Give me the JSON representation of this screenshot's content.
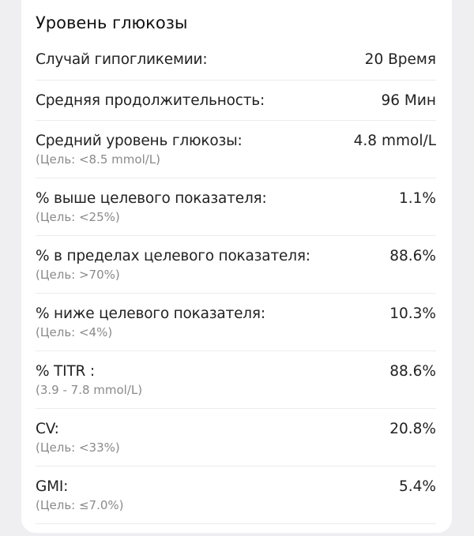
{
  "title": "Уровень глюкозы",
  "rows": [
    {
      "label": "Случай гипогликемии:",
      "value": "20 Время"
    },
    {
      "label": "Средняя продолжительность:",
      "value": "96 Мин"
    },
    {
      "label": "Средний уровень глюкозы:",
      "sub": "(Цель: <8.5 mmol/L)",
      "value": "4.8 mmol/L"
    },
    {
      "label": "% выше целевого показателя:",
      "sub": "(Цель: <25%)",
      "value": "1.1%"
    },
    {
      "label": "% в пределах целевого показателя:",
      "sub": "(Цель: >70%)",
      "value": "88.6%"
    },
    {
      "label": "% ниже целевого показателя:",
      "sub": "(Цель: <4%)",
      "value": "10.3%"
    },
    {
      "label": "% TITR :",
      "sub": "(3.9 - 7.8 mmol/L)",
      "value": "88.6%"
    },
    {
      "label": "CV:",
      "sub": "(Цель: <33%)",
      "value": "20.8%"
    },
    {
      "label": "GMI:",
      "sub": "(Цель: ≤7.0%)",
      "value": "5.4%"
    }
  ]
}
